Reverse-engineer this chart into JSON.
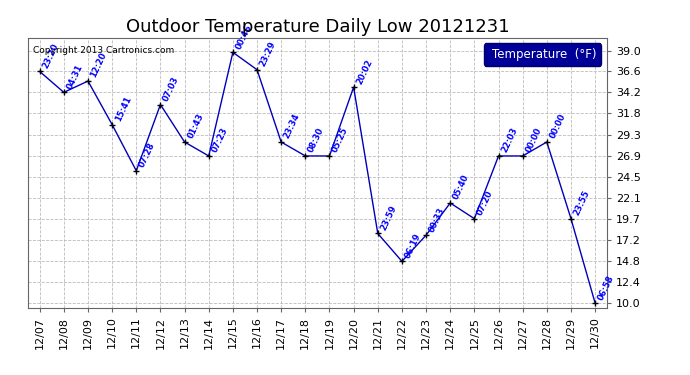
{
  "title": "Outdoor Temperature Daily Low 20121231",
  "copyright": "Copyright 2013 Cartronics.com",
  "legend_label": "Temperature  (°F)",
  "x_labels": [
    "12/07",
    "12/08",
    "12/09",
    "12/10",
    "12/11",
    "12/12",
    "12/13",
    "12/14",
    "12/15",
    "12/16",
    "12/17",
    "12/18",
    "12/19",
    "12/20",
    "12/21",
    "12/22",
    "12/23",
    "12/24",
    "12/25",
    "12/26",
    "12/27",
    "12/28",
    "12/29",
    "12/30"
  ],
  "y_values": [
    36.6,
    34.2,
    35.5,
    30.5,
    25.2,
    32.8,
    28.5,
    26.9,
    38.8,
    36.8,
    28.5,
    26.9,
    26.9,
    34.8,
    18.0,
    14.8,
    17.8,
    21.5,
    19.7,
    26.9,
    26.9,
    28.5,
    19.7,
    10.0
  ],
  "point_labels": [
    "23:20",
    "04:31",
    "12:20",
    "15:41",
    "07:28",
    "07:03",
    "01:43",
    "07:23",
    "00:46",
    "23:29",
    "23:34",
    "08:30",
    "05:25",
    "20:02",
    "23:59",
    "06:19",
    "00:33",
    "05:40",
    "07:20",
    "22:03",
    "00:00",
    "00:00",
    "23:55",
    "06:58"
  ],
  "yticks": [
    10.0,
    12.4,
    14.8,
    17.2,
    19.7,
    22.1,
    24.5,
    26.9,
    29.3,
    31.8,
    34.2,
    36.6,
    39.0
  ],
  "ylim": [
    9.5,
    40.5
  ],
  "xlim": [
    -0.5,
    23.5
  ],
  "line_color": "#0000bb",
  "marker_color": "#000000",
  "label_color": "#0000ff",
  "background_color": "#ffffff",
  "grid_color": "#bbbbbb",
  "title_fontsize": 13,
  "tick_fontsize": 8,
  "legend_bg": "#000099",
  "legend_fg": "#ffffff"
}
